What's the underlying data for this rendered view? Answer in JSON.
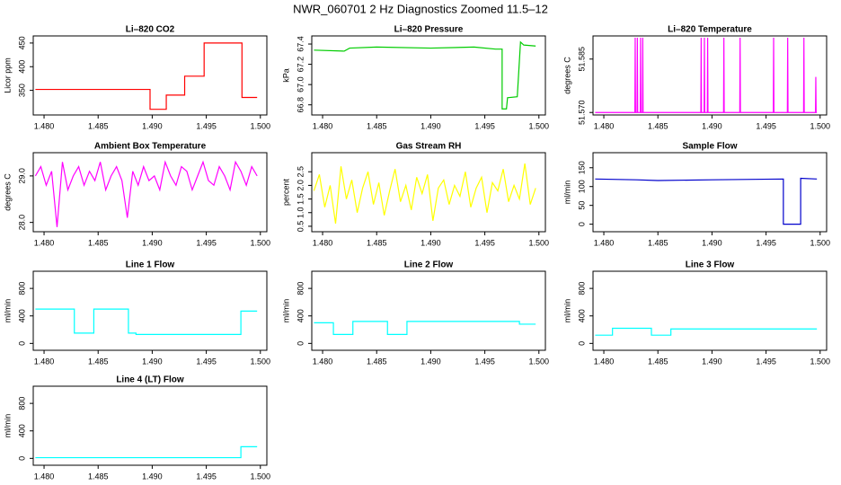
{
  "title": "NWR_060701  2 Hz Diagnostics Zoomed 11.5–12",
  "chart_data": [
    {
      "type": "line",
      "title": "Li–820 CO2",
      "y_label": "Licor ppm",
      "color": "#ff0000",
      "x": [
        1.4792,
        1.4898,
        1.4898,
        1.4913,
        1.4913,
        1.493,
        1.493,
        1.4948,
        1.4948,
        1.4983,
        1.4983,
        1.4997
      ],
      "values": [
        352,
        352,
        310,
        310,
        340,
        340,
        380,
        380,
        450,
        450,
        335,
        335
      ],
      "xlim": [
        1.479,
        1.5006
      ],
      "ylim": [
        298,
        465
      ],
      "yticks": [
        350,
        400,
        450
      ],
      "xticks": [
        {
          "value": 1.48,
          "label": "1.480"
        },
        {
          "value": 1.485,
          "label": "1.485"
        },
        {
          "value": 1.49,
          "label": "1.490"
        },
        {
          "value": 1.495,
          "label": "1.495"
        },
        {
          "value": 1.5,
          "label": "1.500"
        }
      ]
    },
    {
      "type": "line",
      "title": "Li–820 Pressure",
      "y_label": "kPa",
      "color": "#00cc00",
      "x": [
        1.4792,
        1.482,
        1.4825,
        1.485,
        1.49,
        1.494,
        1.496,
        1.4966,
        1.4966,
        1.497,
        1.4971,
        1.498,
        1.4983,
        1.4986,
        1.4997
      ],
      "values": [
        67.34,
        67.33,
        67.36,
        67.37,
        67.36,
        67.37,
        67.35,
        67.35,
        66.76,
        66.76,
        66.87,
        66.88,
        67.42,
        67.39,
        67.38
      ],
      "xlim": [
        1.479,
        1.5006
      ],
      "ylim": [
        66.7,
        67.48
      ],
      "yticks": [
        66.8,
        {
          "value": 67.0,
          "label": "67.0"
        },
        67.2,
        67.4
      ],
      "xticks": [
        {
          "value": 1.48,
          "label": "1.480"
        },
        {
          "value": 1.485,
          "label": "1.485"
        },
        {
          "value": 1.49,
          "label": "1.490"
        },
        {
          "value": 1.495,
          "label": "1.495"
        },
        {
          "value": 1.5,
          "label": "1.500"
        }
      ]
    },
    {
      "type": "line",
      "title": "Li–820 Temperature",
      "y_label": "degrees C",
      "color": "#ff00ff",
      "x": [
        1.4792,
        1.48287,
        1.4829,
        1.48293,
        1.48307,
        1.4831,
        1.48313,
        1.48337,
        1.4834,
        1.48343,
        1.48357,
        1.4836,
        1.48363,
        1.48897,
        1.489,
        1.48903,
        1.48927,
        1.4893,
        1.48933,
        1.48957,
        1.4896,
        1.48963,
        1.49107,
        1.4911,
        1.49113,
        1.49257,
        1.4926,
        1.49263,
        1.49567,
        1.4957,
        1.49573,
        1.49697,
        1.497,
        1.49703,
        1.49847,
        1.4985,
        1.49853,
        1.49957,
        1.4996,
        1.49963,
        1.4997
      ],
      "values": [
        51.57,
        51.57,
        51.591,
        51.57,
        51.57,
        51.591,
        51.57,
        51.57,
        51.591,
        51.57,
        51.57,
        51.591,
        51.57,
        51.57,
        51.591,
        51.57,
        51.57,
        51.591,
        51.57,
        51.57,
        51.591,
        51.57,
        51.57,
        51.591,
        51.57,
        51.57,
        51.591,
        51.57,
        51.57,
        51.591,
        51.57,
        51.57,
        51.591,
        51.57,
        51.57,
        51.591,
        51.57,
        51.57,
        51.58,
        51.57,
        51.57
      ],
      "xlim": [
        1.479,
        1.5006
      ],
      "ylim": [
        51.5693,
        51.5915
      ],
      "yticks": [
        {
          "value": 51.57,
          "label": "51.570"
        },
        {
          "value": 51.585,
          "label": "51.585"
        }
      ],
      "xticks": [
        {
          "value": 1.48,
          "label": "1.480"
        },
        {
          "value": 1.485,
          "label": "1.485"
        },
        {
          "value": 1.49,
          "label": "1.490"
        },
        {
          "value": 1.495,
          "label": "1.495"
        },
        {
          "value": 1.5,
          "label": "1.500"
        }
      ]
    },
    {
      "type": "line",
      "title": "Ambient Box Temperature",
      "y_label": "degrees C",
      "color": "#ff00ff",
      "x": [
        1.4792,
        1.4797,
        1.4802,
        1.4807,
        1.4812,
        1.4817,
        1.4822,
        1.4827,
        1.4832,
        1.4837,
        1.4842,
        1.4847,
        1.4852,
        1.4857,
        1.4862,
        1.4867,
        1.4872,
        1.4877,
        1.4882,
        1.4887,
        1.4892,
        1.4897,
        1.4902,
        1.4907,
        1.4912,
        1.4917,
        1.4922,
        1.4927,
        1.4932,
        1.4937,
        1.4942,
        1.4947,
        1.4952,
        1.4957,
        1.4962,
        1.4967,
        1.4972,
        1.4977,
        1.4982,
        1.4987,
        1.4992,
        1.4997
      ],
      "values": [
        29.0,
        29.2,
        28.8,
        29.1,
        27.9,
        29.3,
        28.7,
        29.0,
        29.2,
        28.8,
        29.1,
        28.9,
        29.3,
        28.7,
        29.0,
        29.2,
        28.9,
        28.1,
        29.1,
        28.8,
        29.2,
        28.9,
        29.0,
        28.7,
        29.3,
        29.0,
        28.8,
        29.2,
        29.1,
        28.7,
        29.0,
        29.3,
        28.9,
        28.8,
        29.2,
        29.0,
        28.7,
        29.3,
        29.1,
        28.8,
        29.2,
        29.0
      ],
      "xlim": [
        1.479,
        1.5006
      ],
      "ylim": [
        27.8,
        29.5
      ],
      "yticks": [
        {
          "value": 28.0,
          "label": "28.0"
        },
        {
          "value": 29.0,
          "label": "29.0"
        }
      ],
      "xticks": [
        {
          "value": 1.48,
          "label": "1.480"
        },
        {
          "value": 1.485,
          "label": "1.485"
        },
        {
          "value": 1.49,
          "label": "1.490"
        },
        {
          "value": 1.495,
          "label": "1.495"
        },
        {
          "value": 1.5,
          "label": "1.500"
        }
      ]
    },
    {
      "type": "line",
      "title": "Gas Stream RH",
      "y_label": "percent",
      "color": "#ffff00",
      "x": [
        1.4792,
        1.4797,
        1.4802,
        1.4807,
        1.4812,
        1.4817,
        1.4822,
        1.4827,
        1.4832,
        1.4837,
        1.4842,
        1.4847,
        1.4852,
        1.4857,
        1.4862,
        1.4867,
        1.4872,
        1.4877,
        1.4882,
        1.4887,
        1.4892,
        1.4897,
        1.4902,
        1.4907,
        1.4912,
        1.4917,
        1.4922,
        1.4927,
        1.4932,
        1.4937,
        1.4942,
        1.4947,
        1.4952,
        1.4957,
        1.4962,
        1.4967,
        1.4972,
        1.4977,
        1.4982,
        1.4987,
        1.4992,
        1.4997
      ],
      "values": [
        1.8,
        2.4,
        1.2,
        2.0,
        0.6,
        2.7,
        1.5,
        2.2,
        1.0,
        1.9,
        2.5,
        1.3,
        2.1,
        0.9,
        1.8,
        2.6,
        1.4,
        2.0,
        1.1,
        2.3,
        1.7,
        2.4,
        0.7,
        1.9,
        2.2,
        1.3,
        2.0,
        1.6,
        2.5,
        1.2,
        1.9,
        2.3,
        1.0,
        2.1,
        1.8,
        2.6,
        1.4,
        2.0,
        1.5,
        2.8,
        1.3,
        1.9
      ],
      "xlim": [
        1.479,
        1.5006
      ],
      "ylim": [
        0.3,
        3.2
      ],
      "yticks": [
        0.5,
        {
          "value": 1.0,
          "label": "1.0"
        },
        1.5,
        {
          "value": 2.0,
          "label": "2.0"
        },
        2.5
      ],
      "xticks": [
        {
          "value": 1.48,
          "label": "1.480"
        },
        {
          "value": 1.485,
          "label": "1.485"
        },
        {
          "value": 1.49,
          "label": "1.490"
        },
        {
          "value": 1.495,
          "label": "1.495"
        },
        {
          "value": 1.5,
          "label": "1.500"
        }
      ]
    },
    {
      "type": "line",
      "title": "Sample Flow",
      "y_label": "ml/min",
      "color": "#0000cc",
      "x": [
        1.4792,
        1.483,
        1.485,
        1.49,
        1.4966,
        1.4966,
        1.4982,
        1.4982,
        1.4997
      ],
      "values": [
        120,
        118,
        116,
        118,
        120,
        0,
        0,
        122,
        120
      ],
      "xlim": [
        1.479,
        1.5006
      ],
      "ylim": [
        -20,
        190
      ],
      "yticks": [
        0,
        50,
        100,
        150
      ],
      "xticks": [
        {
          "value": 1.48,
          "label": "1.480"
        },
        {
          "value": 1.485,
          "label": "1.485"
        },
        {
          "value": 1.49,
          "label": "1.490"
        },
        {
          "value": 1.495,
          "label": "1.495"
        },
        {
          "value": 1.5,
          "label": "1.500"
        }
      ]
    },
    {
      "type": "line",
      "title": "Line 1 Flow",
      "y_label": "ml/min",
      "color": "#00ffff",
      "x": [
        1.4792,
        1.4828,
        1.4828,
        1.4846,
        1.4846,
        1.4878,
        1.4878,
        1.4885,
        1.4885,
        1.4982,
        1.4982,
        1.4997
      ],
      "values": [
        500,
        500,
        150,
        150,
        500,
        500,
        150,
        150,
        130,
        130,
        470,
        470
      ],
      "xlim": [
        1.479,
        1.5006
      ],
      "ylim": [
        -100,
        1050
      ],
      "yticks": [
        0,
        400,
        800
      ],
      "xticks": [
        {
          "value": 1.48,
          "label": "1.480"
        },
        {
          "value": 1.485,
          "label": "1.485"
        },
        {
          "value": 1.49,
          "label": "1.490"
        },
        {
          "value": 1.495,
          "label": "1.495"
        },
        {
          "value": 1.5,
          "label": "1.500"
        }
      ]
    },
    {
      "type": "line",
      "title": "Line 2 Flow",
      "y_label": "ml/min",
      "color": "#00ffff",
      "x": [
        1.4792,
        1.481,
        1.481,
        1.4828,
        1.4828,
        1.486,
        1.486,
        1.4878,
        1.4878,
        1.4982,
        1.4982,
        1.4997
      ],
      "values": [
        300,
        300,
        130,
        130,
        320,
        320,
        130,
        130,
        320,
        320,
        280,
        280
      ],
      "xlim": [
        1.479,
        1.5006
      ],
      "ylim": [
        -100,
        1050
      ],
      "yticks": [
        0,
        400,
        800
      ],
      "xticks": [
        {
          "value": 1.48,
          "label": "1.480"
        },
        {
          "value": 1.485,
          "label": "1.485"
        },
        {
          "value": 1.49,
          "label": "1.490"
        },
        {
          "value": 1.495,
          "label": "1.495"
        },
        {
          "value": 1.5,
          "label": "1.500"
        }
      ]
    },
    {
      "type": "line",
      "title": "Line 3 Flow",
      "y_label": "ml/min",
      "color": "#00ffff",
      "x": [
        1.4792,
        1.4808,
        1.4808,
        1.4844,
        1.4844,
        1.4862,
        1.4862,
        1.4997
      ],
      "values": [
        120,
        120,
        220,
        220,
        120,
        120,
        210,
        210
      ],
      "xlim": [
        1.479,
        1.5006
      ],
      "ylim": [
        -100,
        1050
      ],
      "yticks": [
        0,
        400,
        800
      ],
      "xticks": [
        {
          "value": 1.48,
          "label": "1.480"
        },
        {
          "value": 1.485,
          "label": "1.485"
        },
        {
          "value": 1.49,
          "label": "1.490"
        },
        {
          "value": 1.495,
          "label": "1.495"
        },
        {
          "value": 1.5,
          "label": "1.500"
        }
      ]
    },
    {
      "type": "line",
      "title": "Line 4 (LT) Flow",
      "y_label": "ml/min",
      "color": "#00ffff",
      "x": [
        1.4792,
        1.4982,
        1.4982,
        1.4997
      ],
      "values": [
        10,
        10,
        170,
        170
      ],
      "xlim": [
        1.479,
        1.5006
      ],
      "ylim": [
        -100,
        1050
      ],
      "yticks": [
        0,
        400,
        800
      ],
      "xticks": [
        {
          "value": 1.48,
          "label": "1.480"
        },
        {
          "value": 1.485,
          "label": "1.485"
        },
        {
          "value": 1.49,
          "label": "1.490"
        },
        {
          "value": 1.495,
          "label": "1.495"
        },
        {
          "value": 1.5,
          "label": "1.500"
        }
      ]
    }
  ]
}
